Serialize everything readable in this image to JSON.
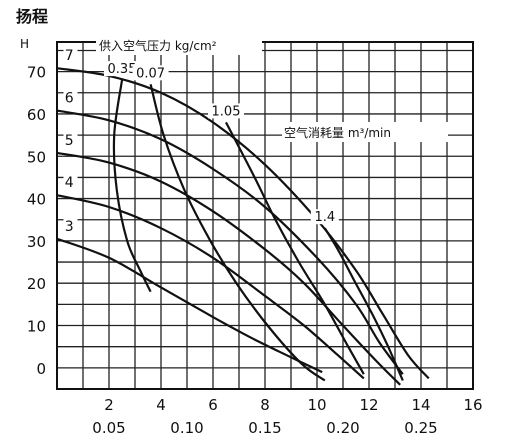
{
  "chart_data": {
    "type": "line",
    "title": "扬程",
    "ylabel": "H",
    "xlim": [
      0,
      16
    ],
    "ylim": [
      -5,
      77
    ],
    "grid": true,
    "x_ticks": [
      "2",
      "4",
      "6",
      "8",
      "10",
      "12",
      "14",
      "16"
    ],
    "x2_ticks": [
      "0.05",
      "0.10",
      "0.15",
      "0.20",
      "0.25"
    ],
    "y_ticks": [
      "0",
      "10",
      "20",
      "30",
      "40",
      "50",
      "60",
      "70"
    ],
    "pressure_legend": "供入空气压力 kg/cm²",
    "consumption_legend": "空气消耗量 m³/min",
    "pressure_curves": [
      {
        "label": "7",
        "points": [
          [
            0,
            70.8
          ],
          [
            2,
            69
          ],
          [
            4,
            65
          ],
          [
            6,
            58
          ],
          [
            8,
            48
          ],
          [
            10,
            35
          ],
          [
            11.5,
            23
          ],
          [
            12.5,
            13
          ],
          [
            13.5,
            3
          ],
          [
            14.3,
            -2.5
          ]
        ]
      },
      {
        "label": "6",
        "points": [
          [
            0,
            60.8
          ],
          [
            2,
            58.5
          ],
          [
            4,
            54
          ],
          [
            6,
            47
          ],
          [
            8,
            38
          ],
          [
            10,
            26
          ],
          [
            11.5,
            15
          ],
          [
            12.4,
            6
          ],
          [
            13.3,
            -1.5
          ]
        ]
      },
      {
        "label": "5",
        "points": [
          [
            0,
            50.8
          ],
          [
            2,
            48.5
          ],
          [
            4,
            44
          ],
          [
            6,
            37
          ],
          [
            8,
            28
          ],
          [
            9.5,
            20
          ],
          [
            11,
            10
          ],
          [
            12.3,
            1.5
          ],
          [
            13.2,
            -4
          ]
        ]
      },
      {
        "label": "4",
        "points": [
          [
            0,
            40.8
          ],
          [
            2,
            38
          ],
          [
            4,
            33
          ],
          [
            6,
            26
          ],
          [
            8,
            17
          ],
          [
            9.5,
            10
          ],
          [
            10.8,
            3
          ],
          [
            11.8,
            -2.5
          ]
        ]
      },
      {
        "label": "3",
        "points": [
          [
            0,
            30.5
          ],
          [
            2,
            26
          ],
          [
            4,
            19
          ],
          [
            6,
            12
          ],
          [
            7.5,
            7
          ],
          [
            9,
            2.5
          ],
          [
            10.2,
            -1
          ]
        ]
      }
    ],
    "consumption_curves": [
      {
        "label": "0.35",
        "points": [
          [
            2.5,
            68
          ],
          [
            2.2,
            55
          ],
          [
            2.3,
            42
          ],
          [
            2.7,
            30
          ],
          [
            3.2,
            23
          ],
          [
            3.6,
            18
          ]
        ]
      },
      {
        "label": "0.07",
        "points": [
          [
            3.6,
            67
          ],
          [
            4.1,
            55
          ],
          [
            4.9,
            42
          ],
          [
            5.9,
            30
          ],
          [
            6.9,
            20
          ],
          [
            8.1,
            10
          ],
          [
            9.4,
            1
          ],
          [
            10.3,
            -3
          ]
        ]
      },
      {
        "label": "1.05",
        "points": [
          [
            6.5,
            58
          ],
          [
            7.6,
            45
          ],
          [
            8.4,
            35
          ],
          [
            9.3,
            25
          ],
          [
            10.3,
            15
          ],
          [
            11.2,
            5
          ],
          [
            11.8,
            -1.5
          ]
        ]
      },
      {
        "label": "1.4",
        "points": [
          [
            10.3,
            33
          ],
          [
            10.8,
            28
          ],
          [
            11.4,
            21
          ],
          [
            12.1,
            13
          ],
          [
            12.7,
            5.5
          ],
          [
            13.3,
            -3
          ]
        ]
      }
    ]
  }
}
